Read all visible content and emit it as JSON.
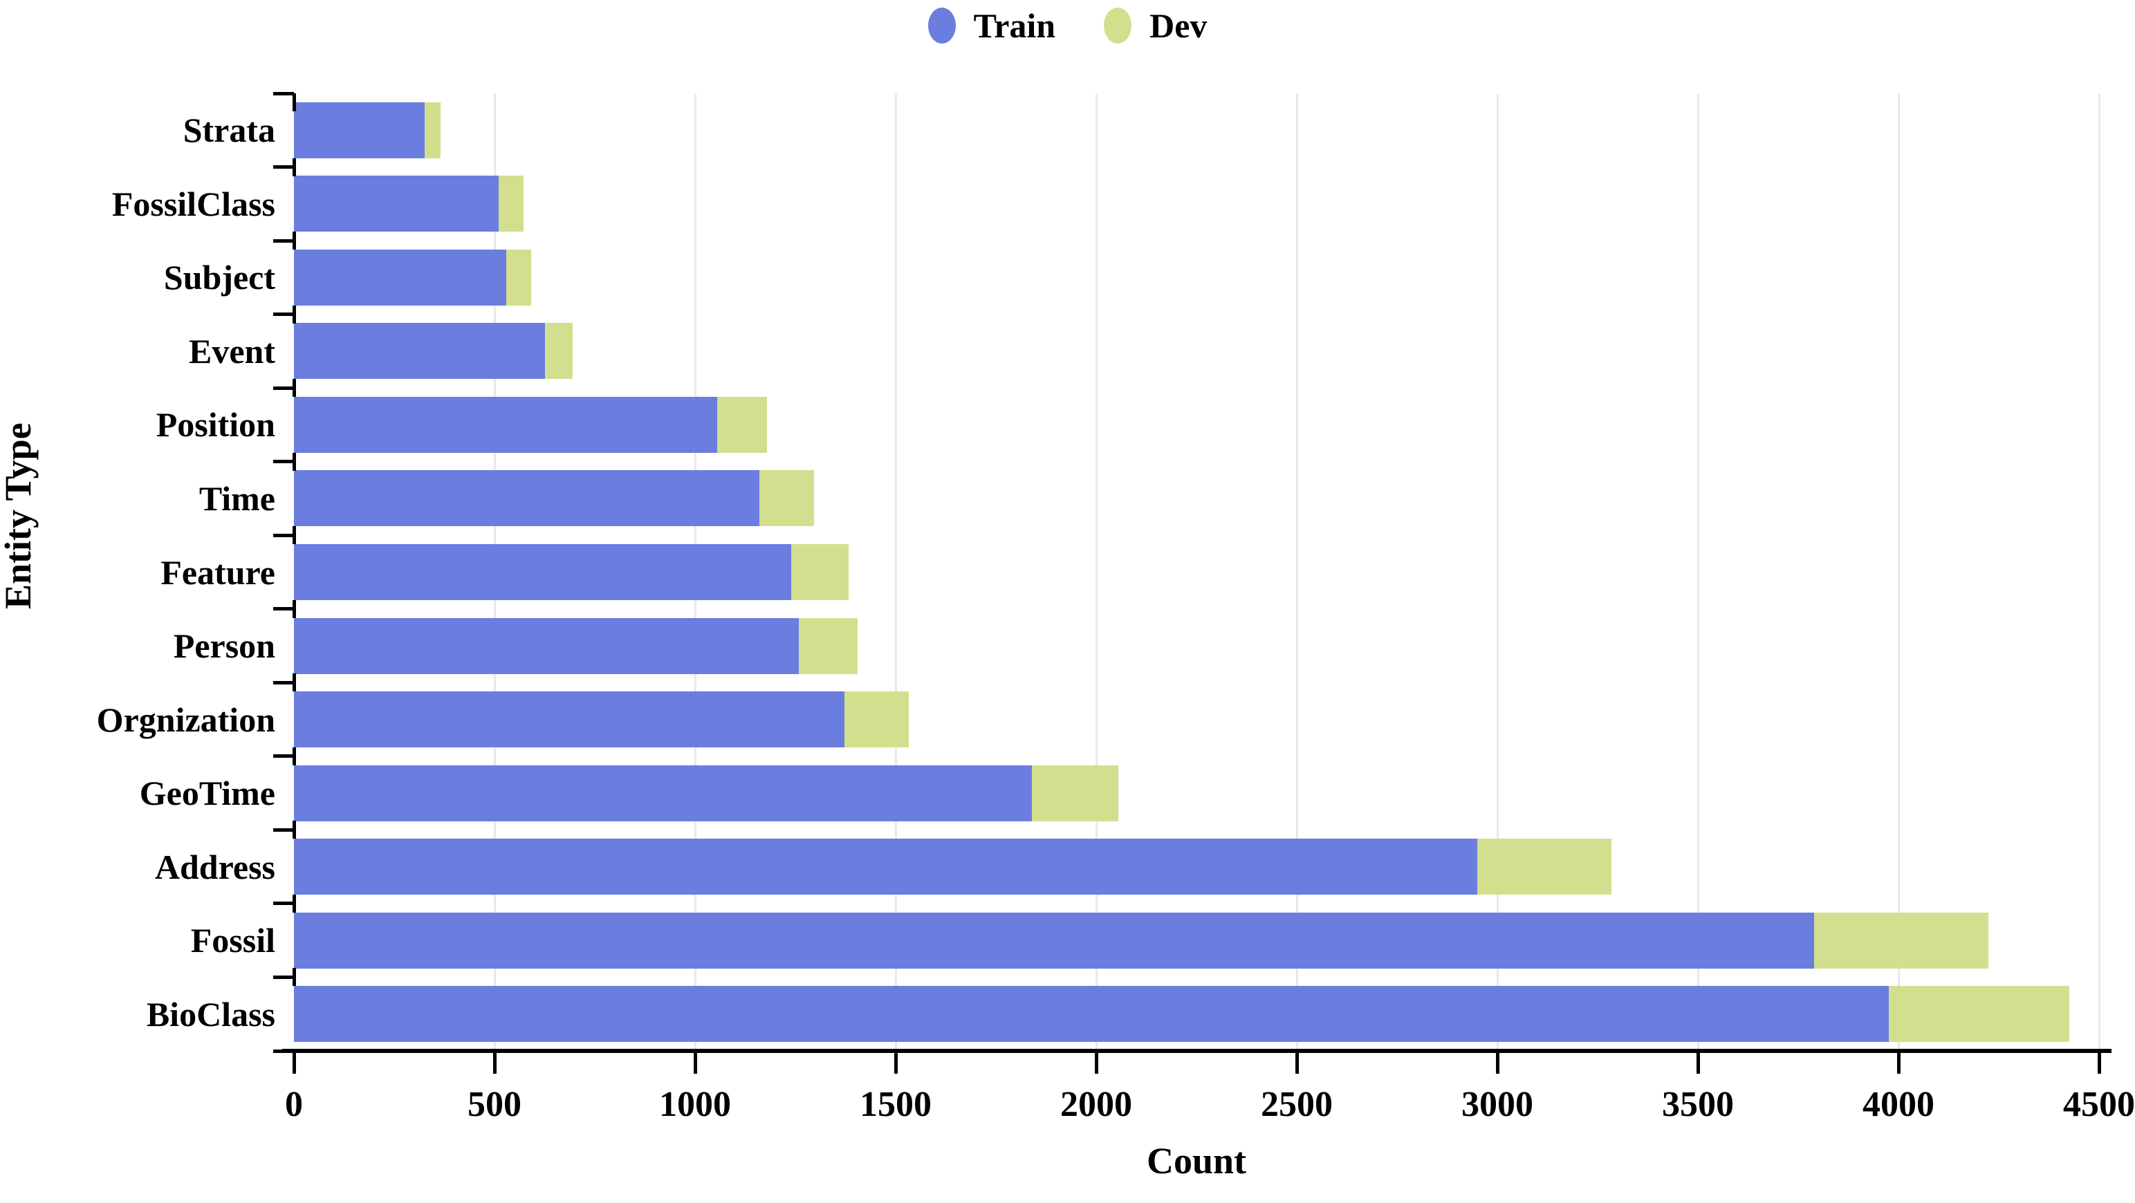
{
  "chart_data": {
    "type": "bar",
    "orientation": "horizontal",
    "stacked": true,
    "title": "",
    "xlabel": "Count",
    "ylabel": "Entity Type",
    "xlim": [
      0,
      4500
    ],
    "x_ticks": [
      0,
      500,
      1000,
      1500,
      2000,
      2500,
      3000,
      3500,
      4000,
      4500
    ],
    "grid": "vertical light-gray gridlines at each x tick",
    "category_order": "top-to-bottom",
    "categories": [
      "Strata",
      "FossilClass",
      "Subject",
      "Event",
      "Position",
      "Time",
      "Feature",
      "Person",
      "Orgnization",
      "GeoTime",
      "Address",
      "Fossil",
      "BioClass"
    ],
    "series": [
      {
        "name": "Train",
        "color": "#6b7ddf",
        "values": [
          325,
          510,
          530,
          625,
          1055,
          1160,
          1240,
          1258,
          1373,
          1840,
          2950,
          3790,
          3975
        ]
      },
      {
        "name": "Dev",
        "color": "#d2df8e",
        "values": [
          40,
          62,
          62,
          70,
          125,
          137,
          143,
          147,
          160,
          215,
          335,
          435,
          450
        ]
      }
    ],
    "legend": {
      "position": "top-center",
      "entries": [
        {
          "label": "Train",
          "color": "#6b7ddf"
        },
        {
          "label": "Dev",
          "color": "#d2df8e"
        }
      ]
    },
    "colors": {
      "train": "#6b7ddf",
      "dev": "#d2df8e",
      "gridline": "#e8e8e8",
      "axis": "#000000",
      "background": "#ffffff"
    }
  }
}
